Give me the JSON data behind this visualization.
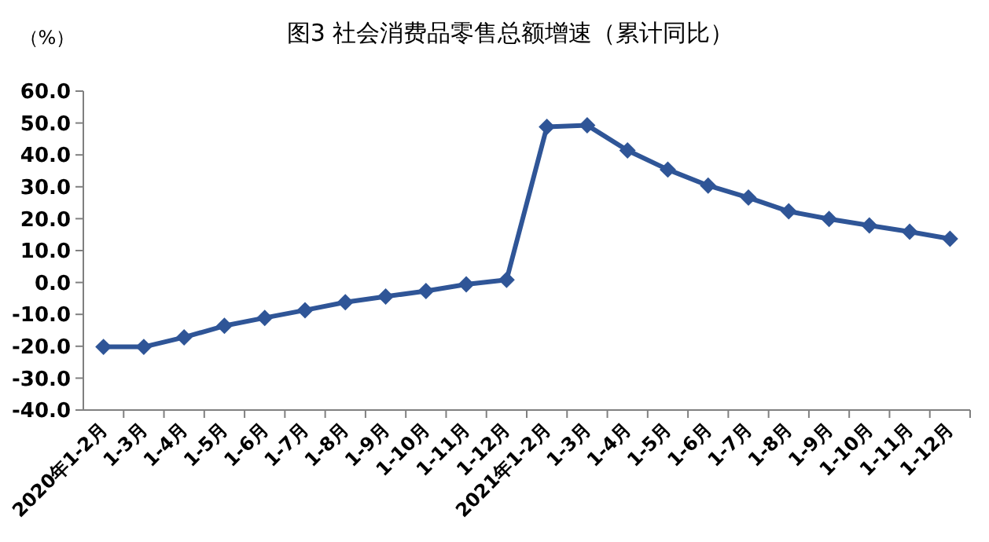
{
  "chart_data": {
    "type": "line",
    "title": "图3  社会消费品零售总额增速（累计同比）",
    "ylabel": "（%）",
    "categories": [
      "2020年1-2月",
      "1-3月",
      "1-4月",
      "1-5月",
      "1-6月",
      "1-7月",
      "1-8月",
      "1-9月",
      "1-10月",
      "1-11月",
      "1-12月",
      "2021年1-2月",
      "1-3月",
      "1-4月",
      "1-5月",
      "1-6月",
      "1-7月",
      "1-8月",
      "1-9月",
      "1-10月",
      "1-11月",
      "1-12月"
    ],
    "series": [
      {
        "color": "#2f5597",
        "values": [
          -20.2,
          -20.2,
          -17.2,
          -13.6,
          -11.1,
          -8.7,
          -6.2,
          -4.4,
          -2.7,
          -0.6,
          0.8,
          48.8,
          49.3,
          41.4,
          35.4,
          30.4,
          26.6,
          22.3,
          19.9,
          17.9,
          15.9,
          13.7
        ]
      }
    ],
    "ylim": [
      -40,
      60
    ],
    "yticks": [
      {
        "value": -40,
        "label": "-40.0"
      },
      {
        "value": -30,
        "label": "-30.0"
      },
      {
        "value": -20,
        "label": "-20.0"
      },
      {
        "value": -10,
        "label": "-10.0"
      },
      {
        "value": 0,
        "label": "0.0"
      },
      {
        "value": 10,
        "label": "10.0"
      },
      {
        "value": 20,
        "label": "20.0"
      },
      {
        "value": 30,
        "label": "30.0"
      },
      {
        "value": 40,
        "label": "40.0"
      },
      {
        "value": 50,
        "label": "50.0"
      },
      {
        "value": 60,
        "label": "60.0"
      }
    ],
    "grid": false,
    "marker": "diamond",
    "line_style": "solid"
  }
}
